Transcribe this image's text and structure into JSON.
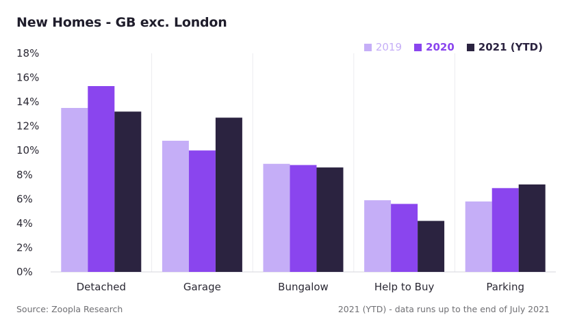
{
  "chart_data": {
    "type": "bar",
    "title": "New Homes - GB exc. London",
    "categories": [
      "Detached",
      "Garage",
      "Bungalow",
      "Help to Buy",
      "Parking"
    ],
    "series": [
      {
        "name": "2019",
        "color": "#c5aef7",
        "values": [
          13.5,
          10.8,
          8.9,
          5.9,
          5.8
        ]
      },
      {
        "name": "2020",
        "color": "#8a45ee",
        "values": [
          15.3,
          10.0,
          8.8,
          5.6,
          6.9
        ]
      },
      {
        "name": "2021 (YTD)",
        "color": "#2b2340",
        "values": [
          13.2,
          12.7,
          8.6,
          4.2,
          7.2
        ]
      }
    ],
    "ylim": [
      0,
      18
    ],
    "yticks": [
      "0%",
      "2%",
      "4%",
      "6%",
      "8%",
      "10%",
      "12%",
      "14%",
      "16%",
      "18%"
    ],
    "grid": "vertical separators",
    "legend": "top-right"
  },
  "footer": {
    "source": "Source: Zoopla Research",
    "note": "2021 (YTD) - data runs up to the end of July 2021"
  }
}
